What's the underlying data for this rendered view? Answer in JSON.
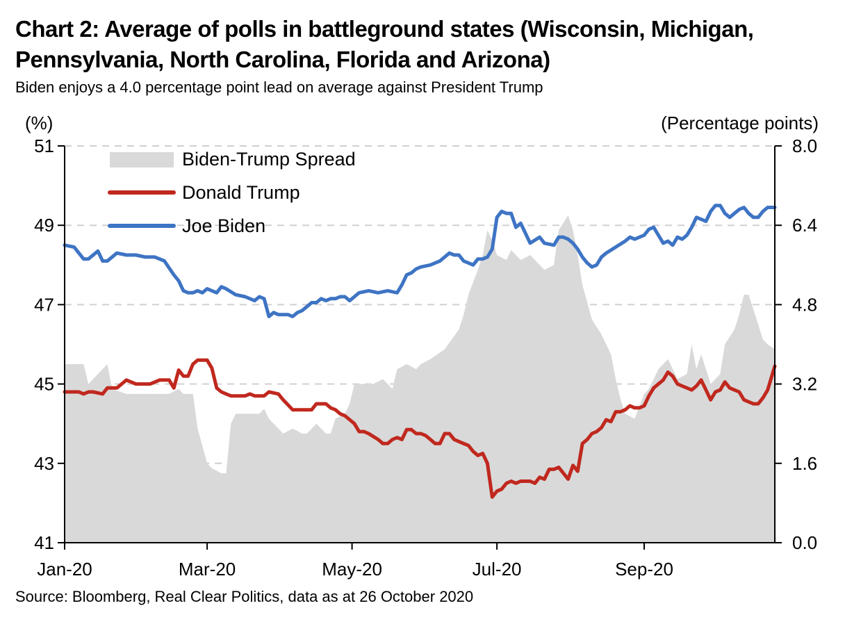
{
  "title": "Chart 2: Average of polls in battleground states (Wisconsin, Michigan, Pennsylvania, North Carolina, Florida and Arizona)",
  "subtitle": "Biden enjoys a 4.0 percentage point lead on average against President Trump",
  "source": "Source: Bloomberg, Real Clear Politics, data as at 26 October 2020",
  "chart_data": {
    "type": "line",
    "left_axis_label": "(%)",
    "right_axis_label": "(Percentage points)",
    "left_ylim": [
      41,
      51
    ],
    "right_ylim": [
      0.0,
      8.0
    ],
    "left_ticks": [
      "41",
      "43",
      "45",
      "47",
      "49",
      "51"
    ],
    "right_ticks": [
      "0.0",
      "1.6",
      "3.2",
      "4.8",
      "6.4",
      "8.0"
    ],
    "x_ticks": [
      {
        "label": "Jan-20",
        "day": 0
      },
      {
        "label": "Mar-20",
        "day": 60
      },
      {
        "label": "May-20",
        "day": 121
      },
      {
        "label": "Jul-20",
        "day": 182
      },
      {
        "label": "Sep-20",
        "day": 244
      }
    ],
    "x_range_days": [
      0,
      299
    ],
    "grid": "horizontal dashed",
    "legend": "top-left",
    "colors": {
      "spread": "#d9d9d9",
      "trump": "#c0281e",
      "biden": "#3e74c4"
    },
    "series": [
      {
        "name": "Biden-Trump Spread",
        "axis": "right",
        "style": "area",
        "days": [
          0,
          8,
          10,
          14,
          18,
          20,
          26,
          28,
          30,
          34,
          40,
          44,
          48,
          50,
          54,
          56,
          60,
          62,
          66,
          68,
          70,
          72,
          74,
          78,
          82,
          84,
          86,
          90,
          92,
          96,
          100,
          102,
          106,
          108,
          110,
          112,
          114,
          118,
          120,
          122,
          124,
          126,
          128,
          130,
          134,
          136,
          138,
          140,
          144,
          148,
          150,
          154,
          160,
          166,
          168,
          170,
          174,
          176,
          178,
          180,
          182,
          186,
          188,
          192,
          196,
          200,
          202,
          206,
          208,
          212,
          214,
          216,
          218,
          222,
          226,
          228,
          230,
          232,
          234,
          236,
          240,
          244,
          246,
          248,
          250,
          254,
          258,
          262,
          264,
          266,
          268,
          272,
          274,
          276,
          278,
          282,
          284,
          286,
          288,
          290,
          292,
          294,
          296,
          299
        ],
        "values": [
          3.6,
          3.6,
          3.2,
          3.4,
          3.6,
          3.1,
          3.0,
          3.0,
          3.0,
          3.0,
          3.0,
          3.0,
          3.1,
          3.0,
          3.0,
          2.3,
          1.6,
          1.5,
          1.4,
          1.4,
          2.4,
          2.6,
          2.6,
          2.6,
          2.6,
          2.7,
          2.5,
          2.3,
          2.2,
          2.3,
          2.2,
          2.2,
          2.4,
          2.3,
          2.2,
          2.2,
          2.5,
          2.6,
          2.8,
          3.2,
          3.2,
          3.2,
          3.2,
          3.2,
          3.3,
          3.2,
          3.1,
          3.5,
          3.6,
          3.5,
          3.6,
          3.7,
          3.9,
          4.3,
          4.6,
          5.0,
          5.5,
          5.8,
          6.3,
          6.1,
          5.8,
          5.7,
          5.9,
          5.7,
          5.8,
          5.6,
          5.5,
          5.6,
          6.3,
          6.6,
          6.3,
          5.8,
          5.2,
          4.5,
          4.2,
          4.0,
          3.8,
          3.3,
          2.9,
          2.6,
          2.5,
          3.0,
          3.1,
          3.3,
          3.5,
          3.7,
          3.3,
          3.4,
          4.0,
          3.5,
          3.8,
          3.2,
          3.3,
          3.4,
          4.0,
          4.3,
          4.6,
          5.0,
          5.0,
          4.7,
          4.4,
          4.1,
          4.0,
          3.9
        ]
      },
      {
        "name": "Donald Trump",
        "axis": "left",
        "style": "line",
        "days": [
          0,
          6,
          8,
          10,
          12,
          16,
          18,
          20,
          22,
          26,
          30,
          34,
          36,
          40,
          44,
          46,
          48,
          50,
          52,
          54,
          56,
          58,
          60,
          62,
          64,
          66,
          68,
          70,
          72,
          74,
          76,
          78,
          80,
          82,
          84,
          86,
          90,
          92,
          96,
          98,
          100,
          102,
          104,
          106,
          108,
          110,
          112,
          114,
          116,
          118,
          120,
          122,
          124,
          126,
          128,
          132,
          134,
          136,
          138,
          140,
          142,
          144,
          146,
          148,
          150,
          152,
          154,
          156,
          158,
          160,
          162,
          164,
          166,
          168,
          170,
          172,
          174,
          176,
          178,
          180,
          182,
          184,
          186,
          188,
          190,
          192,
          194,
          196,
          198,
          200,
          202,
          204,
          206,
          208,
          210,
          212,
          214,
          216,
          218,
          220,
          222,
          224,
          226,
          228,
          230,
          232,
          234,
          236,
          238,
          240,
          242,
          244,
          246,
          248,
          250,
          252,
          254,
          256,
          258,
          260,
          262,
          264,
          266,
          268,
          270,
          272,
          274,
          276,
          278,
          280,
          282,
          284,
          286,
          288,
          290,
          292,
          294,
          296,
          299
        ],
        "values": [
          44.8,
          44.8,
          44.75,
          44.8,
          44.8,
          44.75,
          44.9,
          44.9,
          44.9,
          45.1,
          45.0,
          45.0,
          45.0,
          45.1,
          45.1,
          44.9,
          45.35,
          45.2,
          45.2,
          45.5,
          45.6,
          45.6,
          45.6,
          45.4,
          44.9,
          44.8,
          44.75,
          44.7,
          44.7,
          44.7,
          44.7,
          44.75,
          44.7,
          44.7,
          44.7,
          44.8,
          44.75,
          44.6,
          44.35,
          44.35,
          44.35,
          44.35,
          44.35,
          44.5,
          44.5,
          44.5,
          44.4,
          44.35,
          44.25,
          44.2,
          44.1,
          44.0,
          43.8,
          43.8,
          43.75,
          43.6,
          43.5,
          43.5,
          43.6,
          43.65,
          43.6,
          43.85,
          43.85,
          43.75,
          43.75,
          43.7,
          43.6,
          43.5,
          43.5,
          43.75,
          43.75,
          43.6,
          43.55,
          43.5,
          43.45,
          43.3,
          43.2,
          43.25,
          43.0,
          42.15,
          42.3,
          42.35,
          42.5,
          42.55,
          42.5,
          42.55,
          42.55,
          42.55,
          42.5,
          42.65,
          42.6,
          42.85,
          42.85,
          42.9,
          42.75,
          42.6,
          42.95,
          42.8,
          43.5,
          43.6,
          43.75,
          43.8,
          43.9,
          44.1,
          44.05,
          44.3,
          44.3,
          44.35,
          44.45,
          44.4,
          44.4,
          44.45,
          44.7,
          44.9,
          45.0,
          45.1,
          45.3,
          45.2,
          45.0,
          44.95,
          44.9,
          44.85,
          44.95,
          45.1,
          44.85,
          44.6,
          44.8,
          44.85,
          45.05,
          44.9,
          44.85,
          44.8,
          44.6,
          44.55,
          44.5,
          44.5,
          44.65,
          44.85,
          45.45
        ]
      },
      {
        "name": "Joe Biden",
        "axis": "left",
        "style": "line",
        "days": [
          0,
          4,
          6,
          8,
          10,
          14,
          16,
          18,
          22,
          26,
          30,
          34,
          38,
          42,
          46,
          48,
          50,
          52,
          54,
          56,
          58,
          60,
          62,
          64,
          66,
          68,
          72,
          76,
          80,
          82,
          84,
          86,
          88,
          90,
          92,
          94,
          96,
          98,
          100,
          102,
          104,
          106,
          108,
          110,
          112,
          114,
          116,
          118,
          120,
          122,
          124,
          128,
          132,
          136,
          140,
          142,
          144,
          146,
          148,
          150,
          154,
          158,
          162,
          164,
          166,
          168,
          170,
          172,
          174,
          176,
          178,
          180,
          182,
          184,
          186,
          188,
          190,
          192,
          196,
          200,
          202,
          206,
          208,
          210,
          212,
          214,
          216,
          218,
          220,
          222,
          224,
          226,
          228,
          232,
          236,
          238,
          240,
          242,
          244,
          246,
          248,
          250,
          252,
          254,
          256,
          258,
          260,
          262,
          264,
          266,
          268,
          270,
          272,
          274,
          276,
          278,
          280,
          282,
          284,
          286,
          288,
          290,
          292,
          294,
          296,
          299
        ],
        "values": [
          48.5,
          48.45,
          48.3,
          48.15,
          48.15,
          48.35,
          48.1,
          48.1,
          48.3,
          48.25,
          48.25,
          48.2,
          48.2,
          48.1,
          47.75,
          47.6,
          47.35,
          47.3,
          47.3,
          47.35,
          47.3,
          47.4,
          47.35,
          47.3,
          47.45,
          47.4,
          47.25,
          47.2,
          47.1,
          47.2,
          47.15,
          46.7,
          46.8,
          46.75,
          46.75,
          46.75,
          46.7,
          46.8,
          46.85,
          46.95,
          47.05,
          47.05,
          47.15,
          47.1,
          47.15,
          47.15,
          47.2,
          47.2,
          47.1,
          47.2,
          47.3,
          47.35,
          47.3,
          47.35,
          47.3,
          47.5,
          47.75,
          47.8,
          47.9,
          47.95,
          48.0,
          48.1,
          48.3,
          48.25,
          48.25,
          48.1,
          48.05,
          48.0,
          48.15,
          48.15,
          48.2,
          48.4,
          49.2,
          49.35,
          49.3,
          49.3,
          48.95,
          49.05,
          48.55,
          48.7,
          48.55,
          48.5,
          48.7,
          48.7,
          48.65,
          48.55,
          48.4,
          48.2,
          48.05,
          47.95,
          48.0,
          48.2,
          48.3,
          48.45,
          48.6,
          48.7,
          48.65,
          48.7,
          48.75,
          48.9,
          48.95,
          48.75,
          48.55,
          48.6,
          48.5,
          48.7,
          48.65,
          48.75,
          48.95,
          49.2,
          49.15,
          49.1,
          49.35,
          49.5,
          49.5,
          49.3,
          49.2,
          49.3,
          49.4,
          49.45,
          49.3,
          49.2,
          49.2,
          49.35,
          49.45,
          49.45
        ]
      }
    ]
  }
}
